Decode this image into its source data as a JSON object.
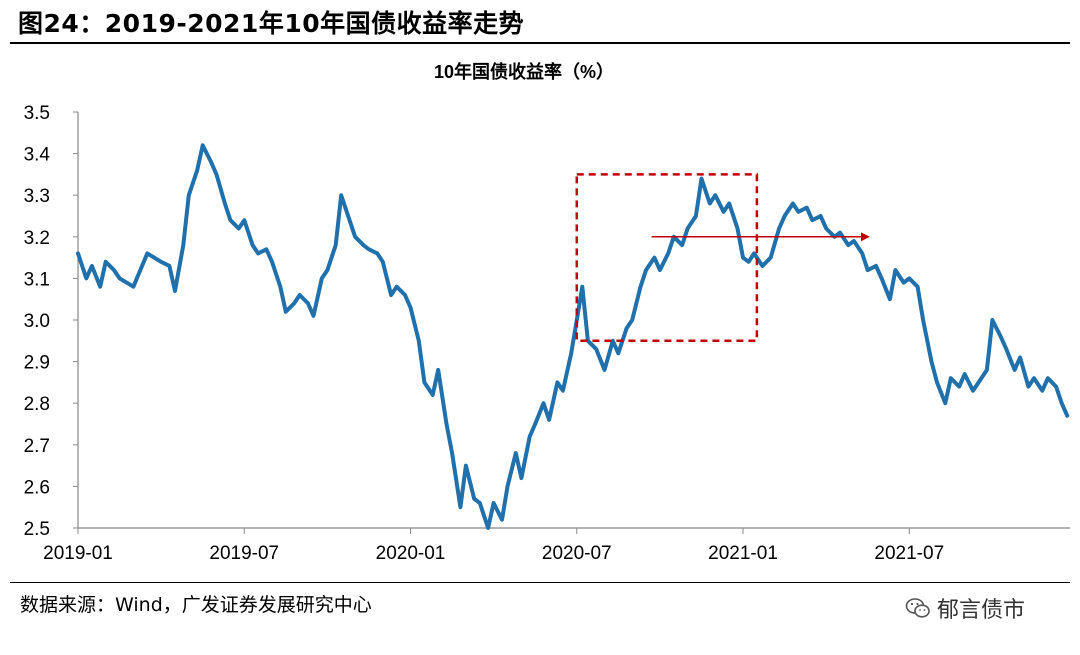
{
  "figure": {
    "title": "图24：2019-2021年10年国债收益率走势",
    "source": "数据来源：Wind，广发证券发展研究中心",
    "watermark": "郁言债市"
  },
  "colors": {
    "line": "#2070AC",
    "box": "#C00000",
    "arrow": "#C00000"
  },
  "chart_data": {
    "type": "line",
    "title": "10年国债收益率（%）",
    "xlabel": "",
    "ylabel": "",
    "ylim": [
      2.5,
      3.5
    ],
    "yticks": [
      2.5,
      2.6,
      2.7,
      2.8,
      2.9,
      3.0,
      3.1,
      3.2,
      3.3,
      3.4,
      3.5
    ],
    "ytick_labels": [
      "2.5",
      "2.6",
      "2.7",
      "2.8",
      "2.9",
      "3.0",
      "3.1",
      "3.2",
      "3.3",
      "3.4",
      "3.5"
    ],
    "xlim": [
      0,
      35.8
    ],
    "xticks": [
      0,
      6,
      12,
      18,
      24,
      30
    ],
    "xtick_labels": [
      "2019-01",
      "2019-07",
      "2020-01",
      "2020-07",
      "2021-01",
      "2021-07"
    ],
    "grid": false,
    "series": [
      {
        "name": "10年国债收益率",
        "x": [
          0,
          0.3,
          0.5,
          0.8,
          1.0,
          1.3,
          1.5,
          2.0,
          2.5,
          3.0,
          3.3,
          3.5,
          3.8,
          4.0,
          4.3,
          4.5,
          4.8,
          5.0,
          5.3,
          5.5,
          5.8,
          6.0,
          6.3,
          6.5,
          6.8,
          7.0,
          7.3,
          7.5,
          7.8,
          8.0,
          8.3,
          8.5,
          8.8,
          9.0,
          9.3,
          9.5,
          10.0,
          10.3,
          10.5,
          10.8,
          11.0,
          11.3,
          11.5,
          11.8,
          12.0,
          12.3,
          12.5,
          12.8,
          13.0,
          13.3,
          13.5,
          13.8,
          14.0,
          14.3,
          14.5,
          14.8,
          15.0,
          15.3,
          15.5,
          15.8,
          16.0,
          16.3,
          16.5,
          16.8,
          17.0,
          17.3,
          17.5,
          17.8,
          18.0,
          18.2,
          18.4,
          18.7,
          19.0,
          19.3,
          19.5,
          19.8,
          20.0,
          20.3,
          20.5,
          20.8,
          21.0,
          21.3,
          21.5,
          21.8,
          22.0,
          22.3,
          22.5,
          22.8,
          23.0,
          23.3,
          23.5,
          23.8,
          24.0,
          24.2,
          24.4,
          24.7,
          25.0,
          25.3,
          25.5,
          25.8,
          26.0,
          26.3,
          26.5,
          26.8,
          27.0,
          27.3,
          27.5,
          27.8,
          28.0,
          28.3,
          28.5,
          28.8,
          29.0,
          29.3,
          29.5,
          29.8,
          30.0,
          30.3,
          30.5,
          30.8,
          31.0,
          31.3,
          31.5,
          31.8,
          32.0,
          32.3,
          32.5,
          32.8,
          33.0,
          33.3,
          33.5,
          33.8,
          34.0,
          34.3,
          34.5,
          34.8,
          35.0,
          35.3,
          35.5,
          35.7
        ],
        "y": [
          3.16,
          3.1,
          3.13,
          3.08,
          3.14,
          3.12,
          3.1,
          3.08,
          3.16,
          3.14,
          3.13,
          3.07,
          3.18,
          3.3,
          3.36,
          3.42,
          3.38,
          3.35,
          3.28,
          3.24,
          3.22,
          3.24,
          3.18,
          3.16,
          3.17,
          3.14,
          3.08,
          3.02,
          3.04,
          3.06,
          3.04,
          3.01,
          3.1,
          3.12,
          3.18,
          3.3,
          3.2,
          3.18,
          3.17,
          3.16,
          3.14,
          3.06,
          3.08,
          3.06,
          3.03,
          2.95,
          2.85,
          2.82,
          2.88,
          2.75,
          2.68,
          2.55,
          2.65,
          2.57,
          2.56,
          2.5,
          2.56,
          2.52,
          2.6,
          2.68,
          2.62,
          2.72,
          2.75,
          2.8,
          2.76,
          2.85,
          2.83,
          2.92,
          3.0,
          3.08,
          2.95,
          2.93,
          2.88,
          2.95,
          2.92,
          2.98,
          3.0,
          3.08,
          3.12,
          3.15,
          3.12,
          3.16,
          3.2,
          3.18,
          3.22,
          3.25,
          3.34,
          3.28,
          3.3,
          3.26,
          3.28,
          3.22,
          3.15,
          3.14,
          3.16,
          3.13,
          3.15,
          3.22,
          3.25,
          3.28,
          3.26,
          3.27,
          3.24,
          3.25,
          3.22,
          3.2,
          3.21,
          3.18,
          3.19,
          3.16,
          3.12,
          3.13,
          3.1,
          3.05,
          3.12,
          3.09,
          3.1,
          3.08,
          3.0,
          2.9,
          2.85,
          2.8,
          2.86,
          2.84,
          2.87,
          2.83,
          2.85,
          2.88,
          3.0,
          2.96,
          2.93,
          2.88,
          2.91,
          2.84,
          2.86,
          2.83,
          2.86,
          2.84,
          2.8,
          2.77
        ]
      }
    ],
    "annotations": [
      {
        "type": "dashed-box",
        "x_start": 18.0,
        "x_end": 24.5,
        "y_low": 2.95,
        "y_high": 3.35
      },
      {
        "type": "arrow",
        "x_start": 20.7,
        "x_end": 28.5,
        "y": 3.2
      }
    ]
  }
}
